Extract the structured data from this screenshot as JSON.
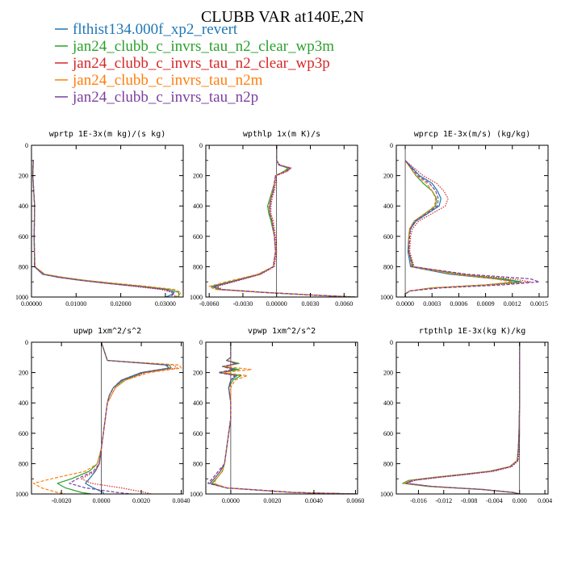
{
  "title": "CLUBB VAR at140E,2N",
  "colors": {
    "flthist": "#1f77b4",
    "wp3m": "#2ca02c",
    "wp3p": "#d62728",
    "n2m": "#ff7f0e",
    "n2p": "#7b3f9e"
  },
  "legend": [
    {
      "key": "flthist",
      "label": "flthist134.000f_xp2_revert",
      "dash": "solid"
    },
    {
      "key": "wp3m",
      "label": "jan24_clubb_c_invrs_tau_n2_clear_wp3m",
      "dash": "solid"
    },
    {
      "key": "wp3p",
      "label": "jan24_clubb_c_invrs_tau_n2_clear_wp3p",
      "dash": "dot"
    },
    {
      "key": "n2m",
      "label": "jan24_clubb_c_invrs_tau_n2m",
      "dash": "dash"
    },
    {
      "key": "n2p",
      "label": "jan24_clubb_c_invrs_tau_n2p",
      "dash": "dash"
    }
  ],
  "chart_data": [
    {
      "type": "line",
      "title": "wprtp  1E-3x(m kg)/(s kg)",
      "xlim": [
        0,
        0.034
      ],
      "ylim": [
        1000,
        0
      ],
      "xticks": [
        0,
        0.01,
        0.02,
        0.03
      ],
      "xticklabels": [
        "0.00000",
        "0.01000",
        "0.02000",
        "0.03000"
      ],
      "yticks": [
        0,
        200,
        400,
        600,
        800,
        1000
      ],
      "yticklabels": [
        "0",
        "200",
        "400",
        "600",
        "800",
        "1000"
      ],
      "y": [
        100,
        200,
        400,
        600,
        800,
        850,
        870,
        890,
        910,
        930,
        950,
        970,
        990,
        1000
      ],
      "series": [
        {
          "key": "flthist",
          "values": [
            0.0004,
            0.0003,
            0.0007,
            0.0006,
            0.0007,
            0.0025,
            0.006,
            0.011,
            0.017,
            0.024,
            0.03,
            0.032,
            0.031,
            0.03
          ]
        },
        {
          "key": "wp3m",
          "values": [
            0.0004,
            0.0003,
            0.0007,
            0.0006,
            0.0007,
            0.003,
            0.007,
            0.012,
            0.018,
            0.025,
            0.031,
            0.033,
            0.033,
            0.033
          ]
        },
        {
          "key": "wp3p",
          "values": [
            0.0004,
            0.0003,
            0.0007,
            0.0006,
            0.0007,
            0.0028,
            0.006,
            0.011,
            0.017,
            0.023,
            0.029,
            0.0315,
            0.032,
            0.0325
          ]
        },
        {
          "key": "n2m",
          "values": [
            0.0004,
            0.0003,
            0.0007,
            0.0006,
            0.0008,
            0.003,
            0.007,
            0.012,
            0.019,
            0.026,
            0.032,
            0.0335,
            0.033,
            0.032
          ]
        },
        {
          "key": "n2p",
          "values": [
            0.0004,
            0.0003,
            0.0007,
            0.0006,
            0.0007,
            0.0025,
            0.006,
            0.011,
            0.017,
            0.024,
            0.03,
            0.032,
            0.0315,
            0.031
          ]
        }
      ]
    },
    {
      "type": "line",
      "title": "wpthlp  1x(m K)/s",
      "xlim": [
        -0.0063,
        0.0072
      ],
      "ylim": [
        1000,
        0
      ],
      "xticks": [
        -0.006,
        -0.003,
        0,
        0.003,
        0.006
      ],
      "xticklabels": [
        "-0.0060",
        "-0.0030",
        "0.00000",
        "0.0030",
        "0.0060"
      ],
      "yticks": [
        0,
        200,
        400,
        600,
        800,
        1000
      ],
      "yticklabels": [
        "0",
        "200",
        "400",
        "600",
        "800",
        "1000"
      ],
      "y": [
        0,
        100,
        130,
        150,
        170,
        200,
        250,
        300,
        350,
        400,
        450,
        500,
        600,
        700,
        800,
        850,
        900,
        930,
        950,
        970,
        990,
        1000
      ],
      "series": [
        {
          "key": "flthist",
          "values": [
            0,
            0,
            0.0002,
            0.0012,
            0.0008,
            -0.0001,
            -0.0002,
            -0.0003,
            -0.0005,
            -0.0006,
            -0.0006,
            -0.0004,
            -0.0002,
            -0.0001,
            -0.0003,
            -0.0015,
            -0.004,
            -0.0055,
            -0.005,
            -0.001,
            0.004,
            0.007
          ]
        },
        {
          "key": "wp3m",
          "values": [
            0,
            0,
            0.0002,
            0.001,
            0.0007,
            -0.0001,
            -0.0002,
            -0.0004,
            -0.0006,
            -0.0008,
            -0.0007,
            -0.0005,
            -0.0002,
            -0.0001,
            -0.0003,
            -0.0016,
            -0.0042,
            -0.0058,
            -0.0052,
            -0.001,
            0.004,
            0.007
          ]
        },
        {
          "key": "wp3p",
          "values": [
            0,
            0,
            0.0003,
            0.0013,
            0.001,
            0.0,
            -0.0001,
            -0.0002,
            -0.0004,
            -0.0005,
            -0.0005,
            -0.0003,
            -0.0001,
            0.0,
            -0.0002,
            -0.0014,
            -0.0038,
            -0.0053,
            -0.0048,
            -0.001,
            0.004,
            0.007
          ]
        },
        {
          "key": "n2m",
          "values": [
            0,
            0,
            0.0002,
            0.0011,
            0.0008,
            -0.0001,
            -0.0002,
            -0.0004,
            -0.0005,
            -0.0007,
            -0.0006,
            -0.0004,
            -0.0002,
            -0.0001,
            -0.0003,
            -0.0017,
            -0.0045,
            -0.006,
            -0.0055,
            -0.0012,
            0.004,
            0.007
          ]
        },
        {
          "key": "n2p",
          "values": [
            0,
            0,
            0.0002,
            0.0012,
            0.0009,
            -0.0001,
            -0.0002,
            -0.0003,
            -0.0005,
            -0.0006,
            -0.0006,
            -0.0004,
            -0.0002,
            -0.0001,
            -0.0003,
            -0.0015,
            -0.004,
            -0.0056,
            -0.005,
            -0.001,
            0.004,
            0.007
          ]
        }
      ]
    },
    {
      "type": "line",
      "title": "wprcp  1E-3x(m/s) (kg/kg)",
      "xlim": [
        -0.0001,
        0.0016
      ],
      "ylim": [
        1000,
        0
      ],
      "xticks": [
        0,
        0.0003,
        0.0006,
        0.0009,
        0.0012,
        0.0015
      ],
      "xticklabels": [
        "0.0000",
        "0.0003",
        "0.0006",
        "0.0009",
        "0.0012",
        "0.0015"
      ],
      "yticks": [
        0,
        200,
        400,
        600,
        800,
        1000
      ],
      "yticklabels": [
        "0",
        "200",
        "400",
        "600",
        "800",
        "1000"
      ],
      "y": [
        100,
        150,
        200,
        250,
        300,
        350,
        400,
        450,
        500,
        550,
        600,
        700,
        800,
        850,
        880,
        900,
        920,
        940,
        960,
        980,
        1000
      ],
      "series": [
        {
          "key": "flthist",
          "values": [
            0.0,
            8e-05,
            0.00016,
            0.0003,
            0.00036,
            0.0004,
            0.00038,
            0.00025,
            0.00012,
            6e-05,
            4e-05,
            3e-05,
            6e-05,
            0.0005,
            0.001,
            0.0013,
            0.0009,
            0.0003,
            5e-05,
            0.0,
            0.0
          ]
        },
        {
          "key": "wp3m",
          "values": [
            0.0,
            6e-05,
            0.00012,
            0.0002,
            0.0003,
            0.00035,
            0.00034,
            0.00022,
            0.0001,
            5e-05,
            4e-05,
            4e-05,
            9e-05,
            0.0006,
            0.0011,
            0.0013,
            0.0009,
            0.0003,
            5e-05,
            0.0,
            0.0
          ]
        },
        {
          "key": "wp3p",
          "values": [
            0.0,
            0.0001,
            0.0002,
            0.00035,
            0.00043,
            0.00048,
            0.00045,
            0.0003,
            0.00015,
            8e-05,
            6e-05,
            5e-05,
            0.0001,
            0.00065,
            0.0012,
            0.0014,
            0.001,
            0.0003,
            5e-05,
            0.0,
            0.0
          ]
        },
        {
          "key": "n2m",
          "values": [
            0.0,
            6e-05,
            0.00012,
            0.00024,
            0.0003,
            0.00034,
            0.00033,
            0.00022,
            0.0001,
            5e-05,
            4e-05,
            4e-05,
            7e-05,
            0.00055,
            0.001,
            0.0012,
            0.0009,
            0.0003,
            5e-05,
            0.0,
            0.0
          ]
        },
        {
          "key": "n2p",
          "values": [
            0.0,
            7e-05,
            0.00014,
            0.00027,
            0.00034,
            0.00037,
            0.00036,
            0.00024,
            0.00011,
            6e-05,
            5e-05,
            4e-05,
            8e-05,
            0.0007,
            0.0014,
            0.0015,
            0.0011,
            0.0004,
            5e-05,
            0.0,
            0.0
          ]
        }
      ]
    },
    {
      "type": "line",
      "title": "upwp  1xm^2/s^2",
      "xlim": [
        -0.0035,
        0.0041
      ],
      "ylim": [
        1000,
        0
      ],
      "xticks": [
        -0.002,
        0,
        0.002,
        0.004
      ],
      "xticklabels": [
        "-0.0020",
        "0.0000",
        "0.0020",
        "0.0040"
      ],
      "yticks": [
        0,
        200,
        400,
        600,
        800,
        1000
      ],
      "yticklabels": [
        "0",
        "200",
        "400",
        "600",
        "800",
        "1000"
      ],
      "y": [
        0,
        120,
        150,
        170,
        200,
        250,
        300,
        350,
        400,
        500,
        600,
        700,
        800,
        850,
        900,
        930,
        960,
        990,
        1000
      ],
      "series": [
        {
          "key": "flthist",
          "values": [
            0,
            0.0003,
            0.0032,
            0.0034,
            0.002,
            0.001,
            0.0006,
            0.0004,
            0.0003,
            0.0002,
            0.0001,
            0.0,
            -0.0001,
            -0.0003,
            -0.0006,
            -0.0008,
            -0.0004,
            0.0001,
            0.0001
          ]
        },
        {
          "key": "wp3m",
          "values": [
            0,
            0.0003,
            0.0034,
            0.0035,
            0.0021,
            0.0011,
            0.0006,
            0.0004,
            0.0003,
            0.0002,
            0.0001,
            0.0,
            -0.0002,
            -0.0006,
            -0.0015,
            -0.0022,
            -0.0018,
            -0.001,
            -0.0005
          ]
        },
        {
          "key": "wp3p",
          "values": [
            0,
            0.0003,
            0.0036,
            0.0038,
            0.0022,
            0.0012,
            0.0007,
            0.0005,
            0.0003,
            0.0002,
            0.0001,
            0.0,
            -0.0001,
            -0.0003,
            -0.001,
            -0.0005,
            0.001,
            0.0022,
            0.0025
          ]
        },
        {
          "key": "n2m",
          "values": [
            0,
            0.0003,
            0.0039,
            0.004,
            0.0024,
            0.0012,
            0.0007,
            0.0005,
            0.0003,
            0.0002,
            0.0001,
            0.0,
            -0.0002,
            -0.0008,
            -0.0025,
            -0.0034,
            -0.003,
            -0.0022,
            -0.0018
          ]
        },
        {
          "key": "n2p",
          "values": [
            0,
            0.0003,
            0.0033,
            0.0034,
            0.002,
            0.001,
            0.0006,
            0.0004,
            0.0003,
            0.0002,
            0.0001,
            0.0,
            -0.0001,
            -0.0004,
            -0.0012,
            -0.0016,
            -0.0008,
            0.0008,
            0.0015
          ]
        }
      ]
    },
    {
      "type": "line",
      "title": "vpwp  1xm^2/s^2",
      "xlim": [
        -0.0012,
        0.0061
      ],
      "ylim": [
        1000,
        0
      ],
      "xticks": [
        0,
        0.002,
        0.004,
        0.006
      ],
      "xticklabels": [
        "0.0000",
        "0.0020",
        "0.0040",
        "0.0060"
      ],
      "yticks": [
        0,
        200,
        400,
        600,
        800,
        1000
      ],
      "yticklabels": [
        "0",
        "200",
        "400",
        "600",
        "800",
        "1000"
      ],
      "y": [
        0,
        100,
        120,
        140,
        160,
        180,
        200,
        220,
        250,
        300,
        400,
        500,
        600,
        700,
        800,
        850,
        900,
        930,
        960,
        990,
        1000
      ],
      "series": [
        {
          "key": "flthist",
          "values": [
            0,
            0,
            -0.0002,
            0.0003,
            -0.0003,
            0.0002,
            -0.0005,
            0.0003,
            0.0,
            -0.0001,
            0.0,
            0.0,
            -0.0001,
            -0.0002,
            -0.0003,
            -0.0005,
            -0.0008,
            -0.001,
            -0.0002,
            0.003,
            0.006
          ]
        },
        {
          "key": "wp3m",
          "values": [
            0,
            0,
            -0.0002,
            0.0004,
            -0.0004,
            0.0004,
            -0.0005,
            0.0005,
            0.0001,
            -0.0001,
            0.0,
            0.0,
            -0.0001,
            -0.0002,
            -0.0003,
            -0.0004,
            -0.0007,
            -0.0009,
            -0.0002,
            0.003,
            0.006
          ]
        },
        {
          "key": "wp3p",
          "values": [
            0,
            0,
            -0.0002,
            0.0002,
            -0.0002,
            0.0001,
            -0.0003,
            0.0002,
            0.0,
            -0.0001,
            0.0,
            0.0,
            -0.0001,
            -0.0002,
            -0.0003,
            -0.0005,
            -0.0008,
            -0.001,
            -0.0002,
            0.003,
            0.006
          ]
        },
        {
          "key": "n2m",
          "values": [
            0,
            0,
            -0.0002,
            0.0003,
            -0.0003,
            0.001,
            -0.0004,
            0.0008,
            0.0002,
            0.0,
            0.0,
            0.0,
            -0.0001,
            -0.0002,
            -0.0003,
            -0.0004,
            -0.0007,
            -0.0008,
            -0.0002,
            0.003,
            0.006
          ]
        },
        {
          "key": "n2p",
          "values": [
            0,
            0,
            -0.0002,
            0.0003,
            -0.0004,
            0.0001,
            -0.0006,
            0.0002,
            0.0,
            -0.0001,
            0.0,
            0.0,
            -0.0001,
            -0.0002,
            -0.0003,
            -0.0006,
            -0.0009,
            -0.0011,
            -0.0002,
            0.003,
            0.006
          ]
        }
      ]
    },
    {
      "type": "line",
      "title": "rtpthlp  1E-3x(kg K)/kg",
      "xlim": [
        -0.0195,
        0.0045
      ],
      "ylim": [
        1000,
        0
      ],
      "xticks": [
        -0.016,
        -0.012,
        -0.008,
        -0.004,
        0,
        0.004
      ],
      "xticklabels": [
        "-0.016",
        "-0.012",
        "-0.008",
        "-0.004",
        "0.000",
        "0.004"
      ],
      "yticks": [
        0,
        200,
        400,
        600,
        800,
        1000
      ],
      "yticklabels": [
        "0",
        "200",
        "400",
        "600",
        "800",
        "1000"
      ],
      "y": [
        0,
        200,
        400,
        600,
        700,
        780,
        820,
        850,
        870,
        890,
        910,
        930,
        950,
        970,
        990,
        1000
      ],
      "series": [
        {
          "key": "flthist",
          "values": [
            0,
            0,
            0,
            -0.0001,
            -0.0002,
            -0.0004,
            -0.0015,
            -0.0045,
            -0.0085,
            -0.013,
            -0.017,
            -0.018,
            -0.014,
            -0.006,
            -0.001,
            0
          ]
        },
        {
          "key": "wp3m",
          "values": [
            0,
            0,
            0,
            -0.0001,
            -0.0002,
            -0.0004,
            -0.0016,
            -0.0048,
            -0.009,
            -0.0135,
            -0.0175,
            -0.0185,
            -0.0145,
            -0.0062,
            -0.001,
            0
          ]
        },
        {
          "key": "wp3p",
          "values": [
            0,
            0,
            0,
            0.0,
            -0.0001,
            -0.0002,
            -0.0012,
            -0.004,
            -0.008,
            -0.0125,
            -0.0165,
            -0.0178,
            -0.0138,
            -0.0058,
            -0.001,
            0
          ]
        },
        {
          "key": "n2m",
          "values": [
            0,
            0,
            0,
            -0.0001,
            -0.0002,
            -0.0004,
            -0.0016,
            -0.0047,
            -0.0088,
            -0.0133,
            -0.0173,
            -0.0183,
            -0.0142,
            -0.006,
            -0.001,
            0
          ]
        },
        {
          "key": "n2p",
          "values": [
            0,
            0,
            0,
            -0.0001,
            -0.0002,
            -0.0003,
            -0.0014,
            -0.0044,
            -0.0084,
            -0.0128,
            -0.0168,
            -0.0179,
            -0.014,
            -0.0059,
            -0.001,
            0
          ]
        }
      ]
    }
  ]
}
